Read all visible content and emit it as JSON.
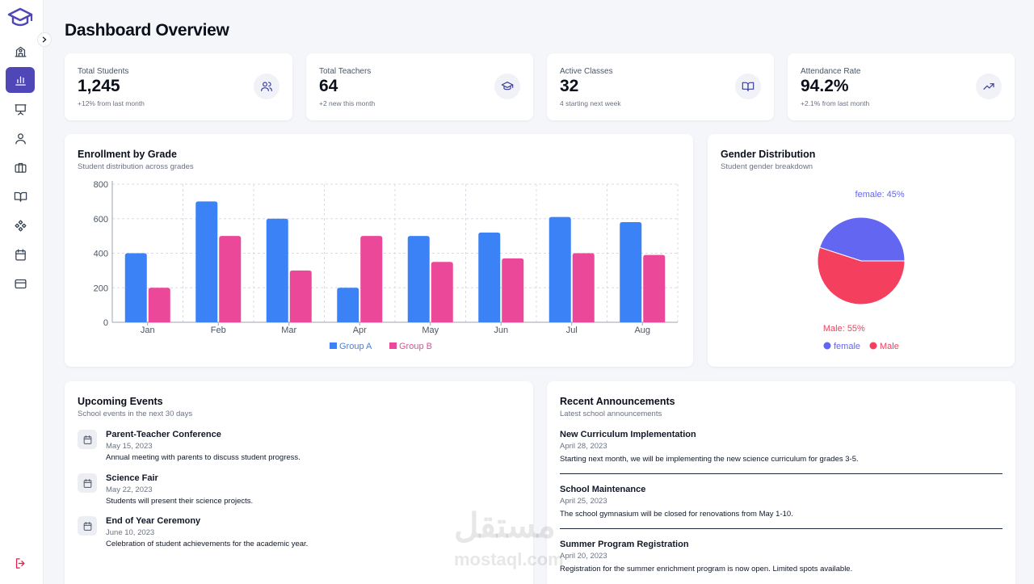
{
  "page": {
    "title": "Dashboard Overview"
  },
  "sidebar": {
    "nav": [
      {
        "name": "home",
        "icon": "school-icon"
      },
      {
        "name": "dashboard",
        "icon": "bar-chart-icon",
        "active": true
      },
      {
        "name": "classes",
        "icon": "presentation-icon"
      },
      {
        "name": "students",
        "icon": "user-icon"
      },
      {
        "name": "staff",
        "icon": "briefcase-icon"
      },
      {
        "name": "courses",
        "icon": "book-icon"
      },
      {
        "name": "activities",
        "icon": "components-icon"
      },
      {
        "name": "calendar",
        "icon": "calendar-icon"
      },
      {
        "name": "payments",
        "icon": "credit-card-icon"
      }
    ],
    "logout_icon": "logout-icon"
  },
  "stats": [
    {
      "label": "Total Students",
      "value": "1,245",
      "sub": "+12% from last month",
      "icon": "users-icon"
    },
    {
      "label": "Total Teachers",
      "value": "64",
      "sub": "+2 new this month",
      "icon": "graduation-cap-icon"
    },
    {
      "label": "Active Classes",
      "value": "32",
      "sub": "4 starting next week",
      "icon": "book-open-icon"
    },
    {
      "label": "Attendance Rate",
      "value": "94.2%",
      "sub": "+2.1% from last month",
      "icon": "trending-up-icon"
    }
  ],
  "enrollment": {
    "title": "Enrollment by Grade",
    "subtitle": "Student distribution across grades"
  },
  "gender": {
    "title": "Gender Distribution",
    "subtitle": "Student gender breakdown"
  },
  "chart_data": [
    {
      "type": "bar",
      "title": "Enrollment by Grade",
      "subtitle": "Student distribution across grades",
      "categories": [
        "Jan",
        "Feb",
        "Mar",
        "Apr",
        "May",
        "Jun",
        "Jul",
        "Aug"
      ],
      "series": [
        {
          "name": "Group A",
          "color": "#3b82f6",
          "values": [
            400,
            700,
            600,
            200,
            500,
            520,
            610,
            580
          ]
        },
        {
          "name": "Group B",
          "color": "#ec4899",
          "values": [
            200,
            500,
            300,
            500,
            350,
            370,
            400,
            390
          ]
        }
      ],
      "yticks": [
        0,
        200,
        400,
        600,
        800
      ],
      "ylim": [
        0,
        800
      ],
      "grid": true,
      "legend": "bottom"
    },
    {
      "type": "pie",
      "title": "Gender Distribution",
      "subtitle": "Student gender breakdown",
      "slices": [
        {
          "name": "female",
          "value": 45,
          "label": "female: 45%",
          "color": "#6366f1"
        },
        {
          "name": "Male",
          "value": 55,
          "label": "Male: 55%",
          "color": "#f43f5e"
        }
      ],
      "legend": "bottom"
    }
  ],
  "events": {
    "title": "Upcoming Events",
    "subtitle": "School events in the next 30 days",
    "items": [
      {
        "title": "Parent-Teacher Conference",
        "date": "May 15, 2023",
        "desc": "Annual meeting with parents to discuss student progress."
      },
      {
        "title": "Science Fair",
        "date": "May 22, 2023",
        "desc": "Students will present their science projects."
      },
      {
        "title": "End of Year Ceremony",
        "date": "June 10, 2023",
        "desc": "Celebration of student achievements for the academic year."
      }
    ]
  },
  "announcements": {
    "title": "Recent Announcements",
    "subtitle": "Latest school announcements",
    "items": [
      {
        "title": "New Curriculum Implementation",
        "date": "April 28, 2023",
        "desc": "Starting next month, we will be implementing the new science curriculum for grades 3-5."
      },
      {
        "title": "School Maintenance",
        "date": "April 25, 2023",
        "desc": "The school gymnasium will be closed for renovations from May 1-10."
      },
      {
        "title": "Summer Program Registration",
        "date": "April 20, 2023",
        "desc": "Registration for the summer enrichment program is now open. Limited spots available."
      }
    ]
  },
  "watermark": {
    "text": "مستقل",
    "sub": "mostaql.com"
  }
}
